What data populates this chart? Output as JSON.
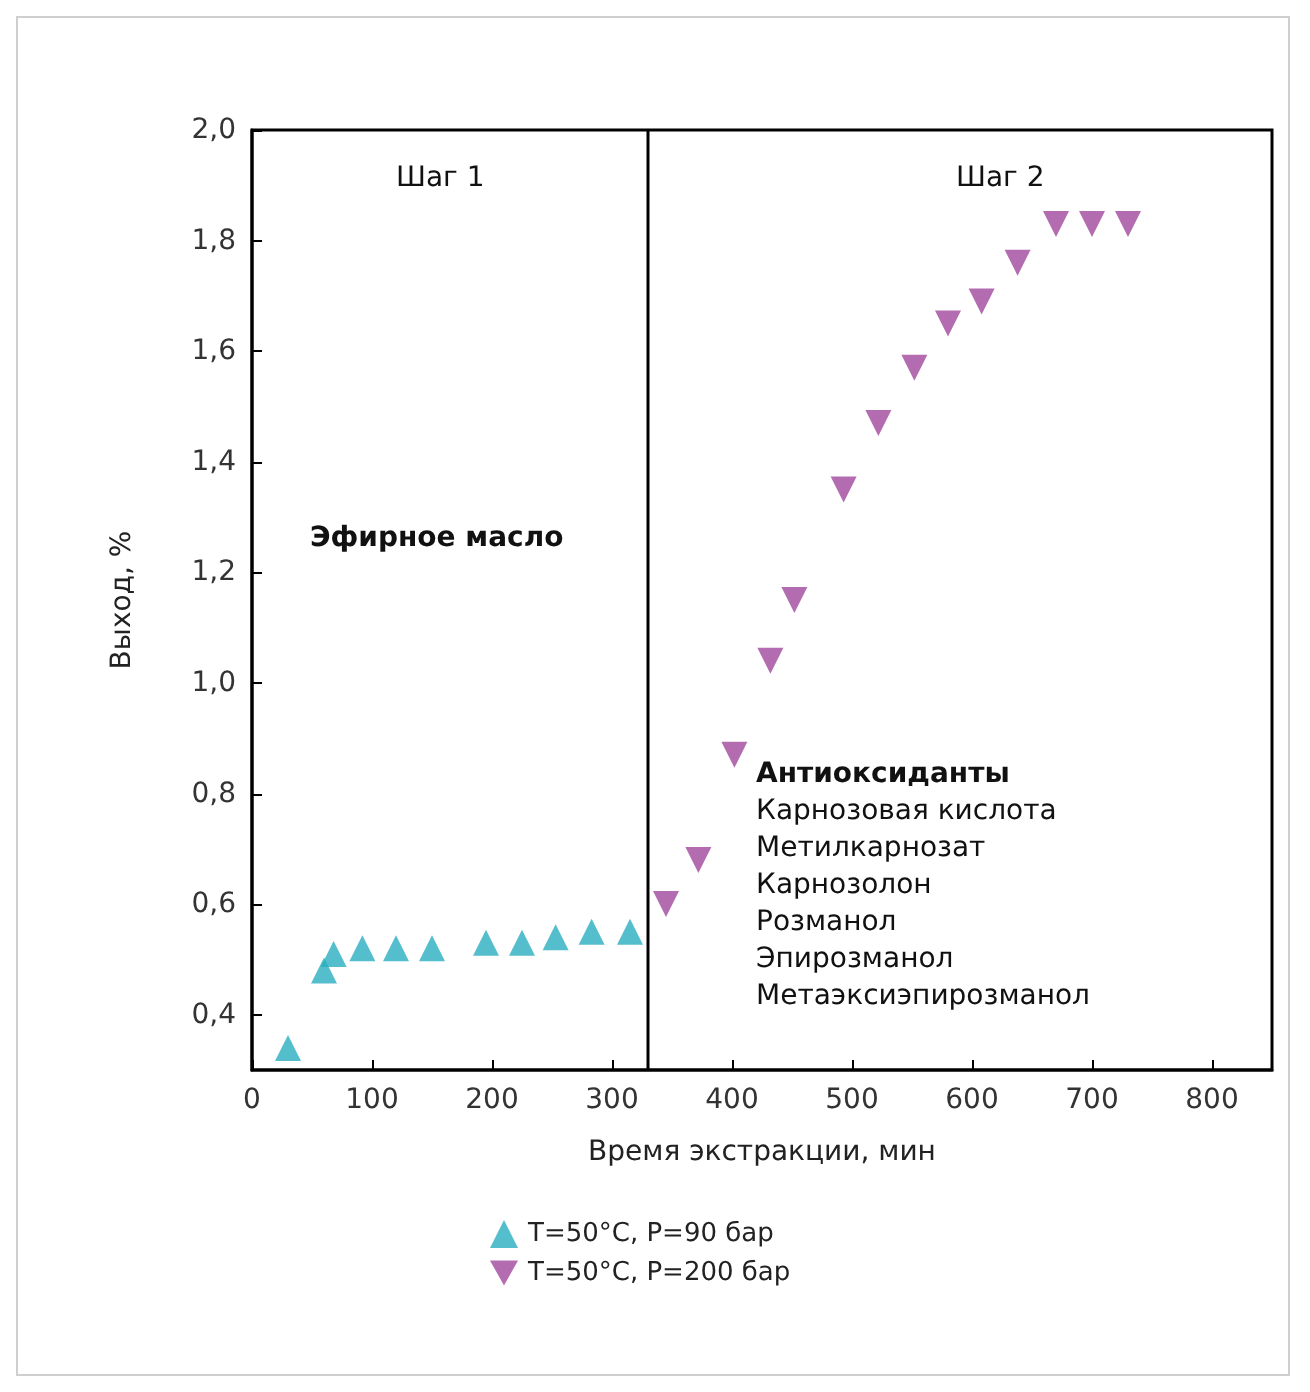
{
  "chart_data": {
    "type": "scatter",
    "xlabel": "Время экстракции, мин",
    "ylabel": "Выход, %",
    "xlim": [
      0,
      850
    ],
    "xticks": [
      0,
      100,
      200,
      300,
      400,
      500,
      600,
      700,
      800
    ],
    "ylim": [
      0.3,
      2.0
    ],
    "yticks": [
      {
        "value": 0.4,
        "label": "0,4"
      },
      {
        "value": 0.6,
        "label": "0,6"
      },
      {
        "value": 0.8,
        "label": "0,8"
      },
      {
        "value": 1.0,
        "label": "1,0"
      },
      {
        "value": 1.2,
        "label": "1,2"
      },
      {
        "value": 1.4,
        "label": "1,4"
      },
      {
        "value": 1.6,
        "label": "1,6"
      },
      {
        "value": 1.8,
        "label": "1,8"
      },
      {
        "value": 2.0,
        "label": "2,0"
      }
    ],
    "grid": false,
    "legend": "bottom",
    "series": [
      {
        "name": "T=50°C, P=90 бар",
        "color": "#2aaec0",
        "marker": "triangle",
        "x": [
          30,
          60,
          68,
          92,
          120,
          150,
          195,
          225,
          253,
          283,
          315
        ],
        "values": [
          0.34,
          0.48,
          0.51,
          0.52,
          0.52,
          0.52,
          0.53,
          0.53,
          0.54,
          0.55,
          0.55
        ]
      },
      {
        "name": "T=50°C, P=200 бар",
        "color": "#a0479b",
        "marker": "triangle-down",
        "x": [
          345,
          372,
          402,
          432,
          452,
          493,
          522,
          552,
          580,
          608,
          638,
          670,
          700,
          730
        ],
        "values": [
          0.6,
          0.68,
          0.87,
          1.04,
          1.15,
          1.35,
          1.47,
          1.57,
          1.65,
          1.69,
          1.76,
          1.83,
          1.83,
          1.83
        ]
      }
    ],
    "ref_lines": [
      {
        "axis": "x",
        "value": 330,
        "color": "#000000"
      }
    ],
    "annotations": [
      "Шаг 1",
      "Шаг 2",
      "Эфирное масло",
      "Антиоксиданты",
      "Карнозовая кислота\nМетилкарнозат\nКарнозолон\nРозманол\nЭпирозманол\nМетаэксиэпирозманол"
    ]
  }
}
